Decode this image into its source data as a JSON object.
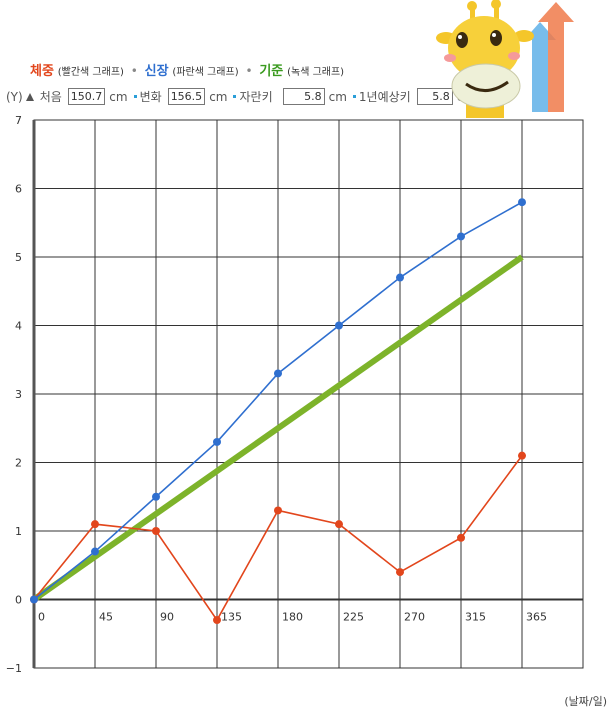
{
  "legend": {
    "weight_label": "체중",
    "weight_sub": "(빨간색 그래프)",
    "height_label": "신장",
    "height_sub": "(파란색 그래프)",
    "standard_label": "기준",
    "standard_sub": "(녹색 그래프)",
    "separator": "•"
  },
  "inputs": {
    "y_label": "(Y)",
    "start_label": "처음",
    "start_value": "150.7",
    "change_label": "변화",
    "change_value": "156.5",
    "growth_label": "자란키",
    "growth_value": "5.8",
    "expected_label": "1년예상키",
    "expected_value": "5.8",
    "unit": "cm"
  },
  "x_unit_label": "(날짜/일)",
  "colors": {
    "weight": "#e2461c",
    "height": "#2f6fcf",
    "standard": "#7db32a",
    "grid": "#333333",
    "axis": "#555555"
  },
  "chart_data": {
    "type": "line",
    "x_ticks": [
      "0",
      "45",
      "90",
      "135",
      "180",
      "225",
      "270",
      "315",
      "365"
    ],
    "y_ticks": [
      "7",
      "6",
      "5",
      "4",
      "3",
      "2",
      "1",
      "0",
      "−1"
    ],
    "xlim": [
      0,
      405
    ],
    "ylim": [
      -1,
      7
    ],
    "grid": true,
    "series": [
      {
        "key": "weight",
        "x": [
          0,
          45,
          90,
          135,
          180,
          225,
          270,
          315,
          360
        ],
        "y": [
          0,
          1.1,
          1.0,
          -0.3,
          1.3,
          1.1,
          0.4,
          0.9,
          2.1
        ]
      },
      {
        "key": "height",
        "x": [
          0,
          45,
          90,
          135,
          180,
          225,
          270,
          315,
          360
        ],
        "y": [
          0,
          0.7,
          1.5,
          2.3,
          3.3,
          4.0,
          4.7,
          5.3,
          5.8
        ]
      },
      {
        "key": "standard",
        "x": [
          0,
          360
        ],
        "y": [
          0,
          5.0
        ]
      }
    ]
  }
}
